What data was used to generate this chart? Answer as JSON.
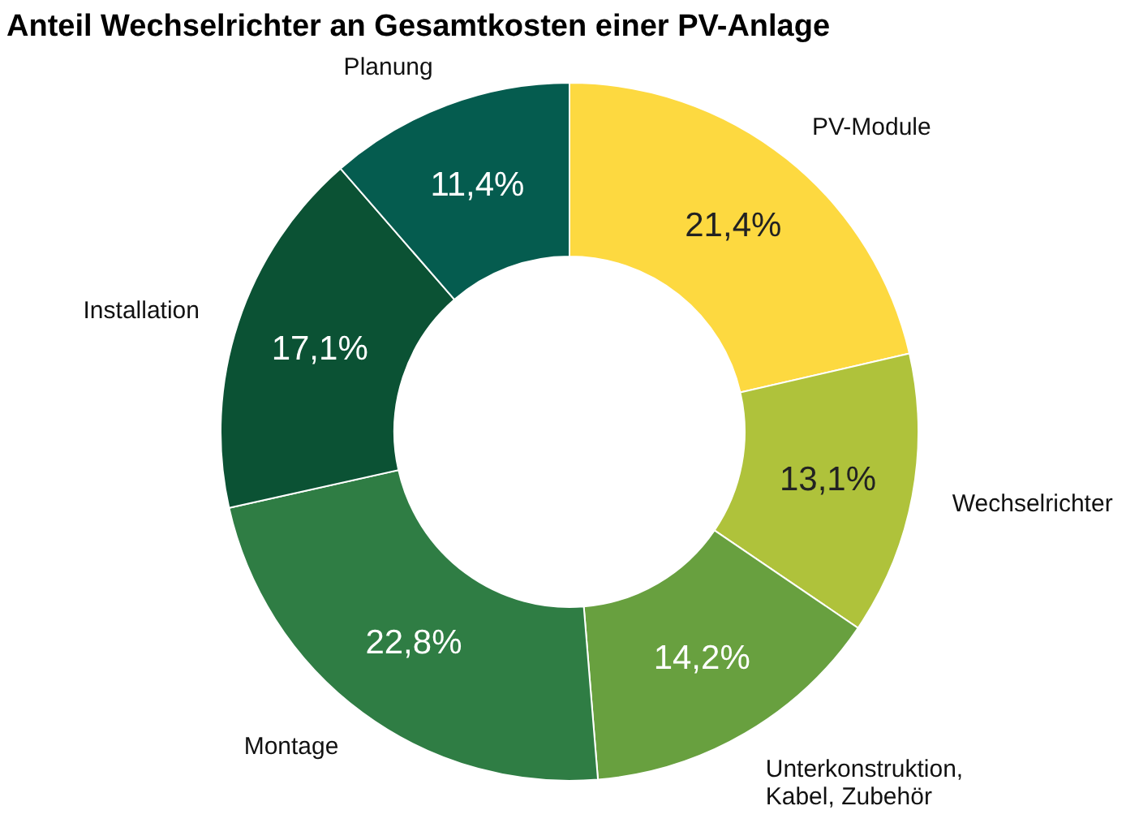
{
  "chart_data": {
    "type": "donut",
    "title": "Anteil Wechselrichter an Gesamtkosten einer PV-Anlage",
    "categories": [
      "PV-Module",
      "Wechselrichter",
      "Unterkonstruktion, Kabel, Zubehör",
      "Montage",
      "Installation",
      "Planung"
    ],
    "values": [
      21.4,
      13.1,
      14.2,
      22.8,
      17.1,
      11.4
    ],
    "value_labels": [
      "21,4%",
      "13,1%",
      "14,2%",
      "22,8%",
      "17,1%",
      "11,4%"
    ],
    "colors": [
      "#fdd940",
      "#afc23b",
      "#68a03f",
      "#2f7d44",
      "#0b5234",
      "#055c4f"
    ]
  }
}
